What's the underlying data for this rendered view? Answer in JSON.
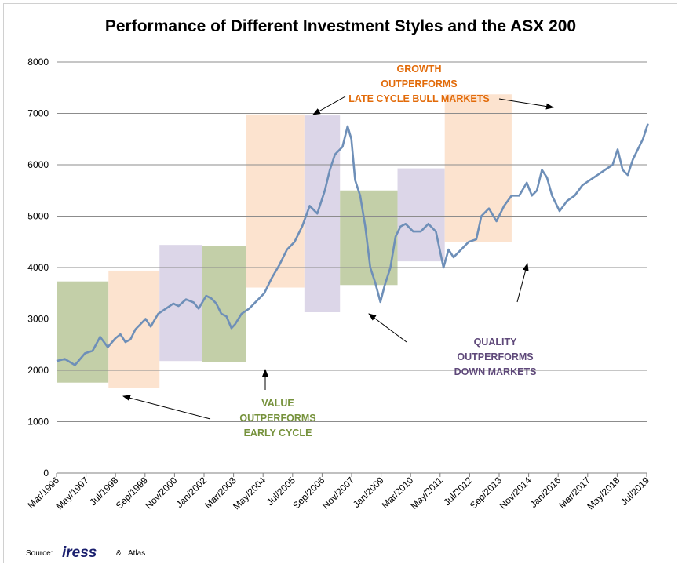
{
  "chart_data": {
    "type": "line",
    "title": "Performance of Different Investment Styles and the ASX 200",
    "xlabel": "",
    "ylabel": "",
    "ylim": [
      0,
      8000
    ],
    "yticks": [
      0,
      1000,
      2000,
      3000,
      4000,
      5000,
      6000,
      7000,
      8000
    ],
    "x_tick_labels": [
      "Mar/1996",
      "May/1997",
      "Jul/1998",
      "Sep/1999",
      "Nov/2000",
      "Jan/2002",
      "Mar/2003",
      "May/2004",
      "Jul/2005",
      "Sep/2006",
      "Nov/2007",
      "Jan/2009",
      "Mar/2010",
      "May/2011",
      "Jul/2012",
      "Sep/2013",
      "Nov/2014",
      "Jan/2016",
      "Mar/2017",
      "May/2018",
      "Jul/2019"
    ],
    "grid": "horizontal",
    "line_color": "#6e8fb8",
    "series": [
      {
        "x": [
          1996.17,
          1996.5,
          1996.9,
          1997.3,
          1997.6,
          1997.9,
          1998.2,
          1998.5,
          1998.7,
          1998.9,
          1999.1,
          1999.3,
          1999.5,
          1999.7,
          1999.9,
          2000.2,
          2000.5,
          2000.8,
          2001.0,
          2001.3,
          2001.6,
          2001.8,
          2002.1,
          2002.3,
          2002.5,
          2002.7,
          2002.9,
          2003.1,
          2003.25,
          2003.5,
          2003.8,
          2004.1,
          2004.4,
          2004.7,
          2005.0,
          2005.3,
          2005.6,
          2005.9,
          2006.2,
          2006.5,
          2006.8,
          2007.0,
          2007.2,
          2007.5,
          2007.7,
          2007.85,
          2008.0,
          2008.2,
          2008.4,
          2008.6,
          2008.8,
          2009.0,
          2009.17,
          2009.4,
          2009.6,
          2009.8,
          2010.0,
          2010.3,
          2010.6,
          2010.9,
          2011.2,
          2011.5,
          2011.7,
          2011.9,
          2012.2,
          2012.5,
          2012.8,
          2013.0,
          2013.3,
          2013.6,
          2013.9,
          2014.2,
          2014.5,
          2014.8,
          2015.0,
          2015.2,
          2015.4,
          2015.6,
          2015.8,
          2016.0,
          2016.1,
          2016.4,
          2016.7,
          2017.0,
          2017.3,
          2017.6,
          2017.9,
          2018.2,
          2018.4,
          2018.6,
          2018.8,
          2019.0,
          2019.2,
          2019.4,
          2019.6
        ],
        "y": [
          2180,
          2220,
          2100,
          2330,
          2380,
          2650,
          2450,
          2620,
          2700,
          2550,
          2600,
          2800,
          2900,
          3000,
          2850,
          3100,
          3200,
          3300,
          3250,
          3380,
          3320,
          3200,
          3450,
          3400,
          3300,
          3100,
          3050,
          2820,
          2900,
          3100,
          3200,
          3350,
          3500,
          3800,
          4050,
          4350,
          4500,
          4800,
          5200,
          5050,
          5500,
          5900,
          6200,
          6350,
          6750,
          6500,
          5700,
          5400,
          4800,
          4000,
          3700,
          3330,
          3650,
          4000,
          4600,
          4800,
          4850,
          4700,
          4700,
          4850,
          4700,
          4000,
          4350,
          4200,
          4350,
          4500,
          4550,
          5000,
          5150,
          4900,
          5200,
          5400,
          5400,
          5650,
          5400,
          5500,
          5900,
          5750,
          5400,
          5200,
          5100,
          5300,
          5400,
          5600,
          5700,
          5800,
          5900,
          6000,
          6300,
          5900,
          5800,
          6100,
          6300,
          6500,
          6800
        ]
      }
    ],
    "shaded_regions": [
      {
        "style": "value",
        "color": "#c3cfa8",
        "x0": 1996.17,
        "x1": 1998.23,
        "y0": 1760,
        "y1": 3730
      },
      {
        "style": "growth",
        "color": "#fce3cf",
        "x0": 1998.23,
        "x1": 2000.25,
        "y0": 1660,
        "y1": 3940
      },
      {
        "style": "quality",
        "color": "#dcd6e8",
        "x0": 2000.25,
        "x1": 2001.95,
        "y0": 2180,
        "y1": 4440
      },
      {
        "style": "value",
        "color": "#c3cfa8",
        "x0": 2001.95,
        "x1": 2003.68,
        "y0": 2160,
        "y1": 4420
      },
      {
        "style": "growth",
        "color": "#fce3cf",
        "x0": 2003.68,
        "x1": 2005.99,
        "y0": 3610,
        "y1": 6980
      },
      {
        "style": "quality",
        "color": "#dcd6e8",
        "x0": 2005.99,
        "x1": 2007.4,
        "y0": 3130,
        "y1": 6960
      },
      {
        "style": "value",
        "color": "#c3cfa8",
        "x0": 2007.4,
        "x1": 2009.68,
        "y0": 3660,
        "y1": 5500
      },
      {
        "style": "quality",
        "color": "#dcd6e8",
        "x0": 2009.68,
        "x1": 2011.55,
        "y0": 4120,
        "y1": 5930
      },
      {
        "style": "growth",
        "color": "#fce3cf",
        "x0": 2011.55,
        "x1": 2014.2,
        "y0": 4490,
        "y1": 7370
      }
    ],
    "annotations": [
      {
        "style": "growth",
        "color": "#e26b0a",
        "lines": [
          "GROWTH",
          "OUTPERFORMS",
          "LATE CYCLE BULL MARKETS"
        ]
      },
      {
        "style": "value",
        "color": "#76923c",
        "lines": [
          "VALUE",
          "OUTPERFORMS",
          "EARLY CYCLE"
        ]
      },
      {
        "style": "quality",
        "color": "#5f497a",
        "lines": [
          "QUALITY",
          "OUTPERFORMS",
          "DOWN MARKETS"
        ]
      }
    ]
  },
  "footer": {
    "source_label": "Source:",
    "logo_text": "iress",
    "amp": "&",
    "atlas": "Atlas"
  }
}
